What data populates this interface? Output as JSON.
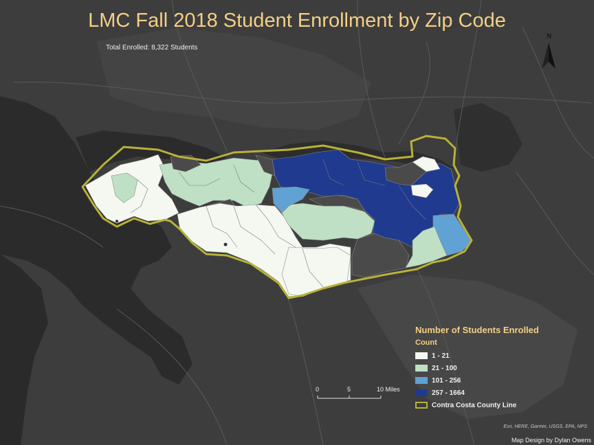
{
  "map": {
    "title": "LMC Fall 2018 Student Enrollment by Zip Code",
    "subtitle": "Total Enrolled: 8,322 Students",
    "north_arrow": {
      "letter": "N",
      "icon": "north-arrow-icon"
    },
    "legend": {
      "title": "Number of Students Enrolled",
      "subtitle": "Count",
      "items": [
        {
          "label": "1 - 21",
          "color": "#f4f8f1"
        },
        {
          "label": "21 - 100",
          "color": "#bfe0c4"
        },
        {
          "label": "101 - 256",
          "color": "#5fa2d3"
        },
        {
          "label": "257 - 1664",
          "color": "#1f3a8f"
        }
      ],
      "boundary": {
        "label": "Contra Costa County Line",
        "color": "#b8b238"
      }
    },
    "scalebar": {
      "labels": [
        "0",
        "5",
        "10 Miles"
      ]
    },
    "credits": "Esri, HERE, Garmin, USGS, EPA, NPS",
    "design_credit": "Map Design by Dylan Owens"
  }
}
